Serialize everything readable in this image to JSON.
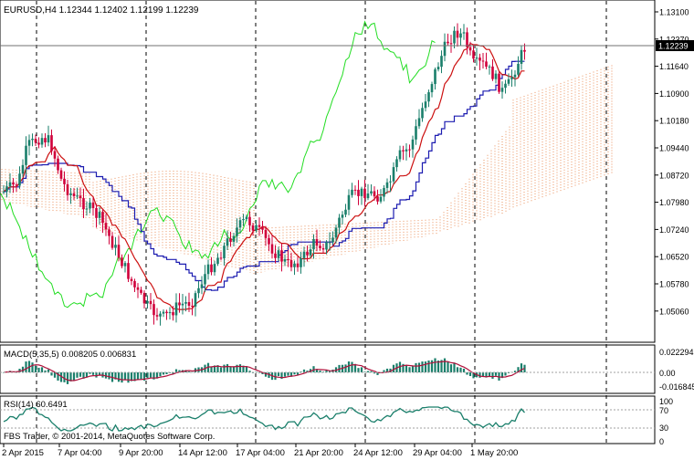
{
  "main": {
    "symbol_header": "EURUSD,H4  1.12344 1.12402 1.12199 1.12239",
    "current_price_label": "1.12239",
    "price_axis": [
      "1.13100",
      "1.12370",
      "1.11640",
      "1.10900",
      "1.10180",
      "1.09440",
      "1.08720",
      "1.07980",
      "1.07240",
      "1.06520",
      "1.05780",
      "1.05060"
    ]
  },
  "macd": {
    "header": "MACD(5,35,5) 0.008205 0.006831",
    "axis": [
      "0.022294",
      "0.00",
      "-0.016845"
    ]
  },
  "rsi": {
    "header": "RSI(14) 60.6491",
    "axis": [
      "100",
      "70",
      "30",
      "0"
    ],
    "watermark": "FBS Trader, © 2001-2014, MetaQuotes Software Corp."
  },
  "time_axis": [
    "2 Apr 2015",
    "7 Apr 04:00",
    "9 Apr 20:00",
    "14 Apr 12:00",
    "17 Apr 04:00",
    "21 Apr 20:00",
    "24 Apr 12:00",
    "29 Apr 04:00",
    "1 May 20:00"
  ],
  "colors": {
    "bull": "#1a7f6b",
    "bear": "#d0003a",
    "kijun": "#1c1cb0",
    "tenkan": "#cc1010",
    "chikou": "#22dd22",
    "cloud": "#e7844a",
    "macd_hist": "#1a7f6b",
    "macd_signal": "#b0103a",
    "rsi_line": "#1a7f6b"
  }
}
